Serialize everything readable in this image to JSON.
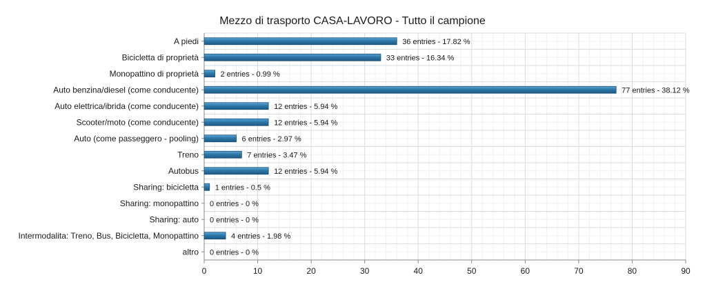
{
  "chart_data": {
    "type": "bar",
    "orientation": "horizontal",
    "title": "Mezzo di trasporto CASA-LAVORO - Tutto il campione",
    "xlabel": "",
    "ylabel": "",
    "xlim": [
      0,
      90
    ],
    "x_ticks": [
      "0",
      "10",
      "20",
      "30",
      "40",
      "50",
      "60",
      "70",
      "80",
      "90"
    ],
    "grid": true,
    "bar_color": "#2e77a8",
    "categories": [
      "A piedi",
      "Bicicletta di proprietà",
      "Monopattino di proprietà",
      "Auto benzina/diesel (come conducente)",
      "Auto elettrica/ibrida (come conducente)",
      "Scooter/moto (come conducente)",
      "Auto (come passeggero - pooling)",
      "Treno",
      "Autobus",
      "Sharing: bicicletta",
      "Sharing: monopattino",
      "Sharing: auto",
      "Intermodalita: Treno, Bus, Bicicletta, Monopattino",
      "altro"
    ],
    "values": [
      36,
      33,
      2,
      77,
      12,
      12,
      6,
      7,
      12,
      1,
      0,
      0,
      4,
      0
    ],
    "data_labels": [
      "36 entries - 17.82 %",
      "33 entries - 16.34 %",
      "2 entries - 0.99 %",
      "77 entries - 38.12 %",
      "12 entries - 5.94 %",
      "12 entries - 5.94 %",
      "6 entries - 2.97 %",
      "7 entries - 3.47 %",
      "12 entries - 5.94 %",
      "1 entries - 0.5 %",
      "0 entries - 0 %",
      "0 entries - 0 %",
      "4 entries - 1.98 %",
      "0 entries - 0 %"
    ]
  }
}
